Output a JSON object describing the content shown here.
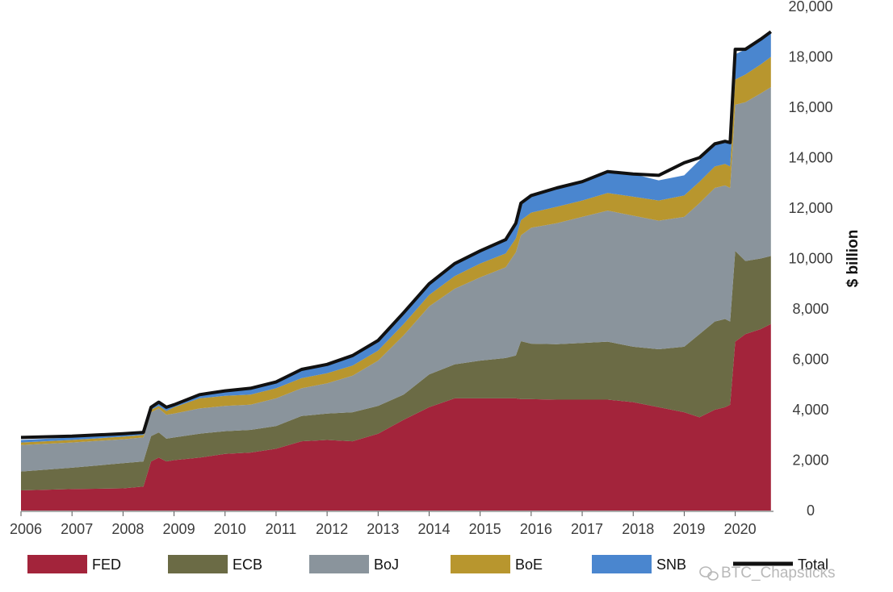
{
  "chart_data": {
    "type": "area",
    "stacked": true,
    "ylabel": "$ billion",
    "ylim": [
      0,
      20000
    ],
    "yticks": [
      0,
      2000,
      4000,
      6000,
      8000,
      10000,
      12000,
      14000,
      16000,
      18000,
      20000
    ],
    "ytick_labels": [
      "0",
      "2,000",
      "4,000",
      "6,000",
      "8,000",
      "10,000",
      "12,000",
      "14,000",
      "16,000",
      "18,000",
      "20,000"
    ],
    "y_axis_position": "right",
    "xlim": [
      2006.0,
      2020.75
    ],
    "xticks": [
      2006,
      2007,
      2008,
      2009,
      2010,
      2011,
      2012,
      2013,
      2014,
      2015,
      2016,
      2017,
      2018,
      2019,
      2020
    ],
    "xtick_labels": [
      "2006",
      "2007",
      "2008",
      "2009",
      "2010",
      "2011",
      "2012",
      "2013",
      "2014",
      "2015",
      "2016",
      "2017",
      "2018",
      "2019",
      "2020"
    ],
    "grid": false,
    "legend_position": "bottom",
    "x": [
      2006.0,
      2007.0,
      2008.0,
      2008.4,
      2008.55,
      2008.7,
      2008.85,
      2009.0,
      2009.5,
      2010.0,
      2010.5,
      2011.0,
      2011.5,
      2012.0,
      2012.5,
      2013.0,
      2013.5,
      2014.0,
      2014.5,
      2015.0,
      2015.5,
      2015.7,
      2015.8,
      2016.0,
      2016.5,
      2017.0,
      2017.5,
      2018.0,
      2018.5,
      2019.0,
      2019.3,
      2019.6,
      2019.8,
      2019.9,
      2020.0,
      2020.2,
      2020.5,
      2020.7
    ],
    "series": [
      {
        "name": "FED",
        "color": "#a3243b",
        "values": [
          800,
          850,
          880,
          950,
          1950,
          2100,
          1950,
          2000,
          2100,
          2250,
          2300,
          2450,
          2750,
          2800,
          2750,
          3050,
          3600,
          4100,
          4450,
          4450,
          4450,
          4450,
          4420,
          4420,
          4400,
          4400,
          4400,
          4300,
          4100,
          3900,
          3700,
          4000,
          4100,
          4200,
          6700,
          7000,
          7200,
          7400
        ]
      },
      {
        "name": "ECB",
        "color": "#6b6b45",
        "values": [
          750,
          850,
          1000,
          1000,
          1000,
          1000,
          900,
          900,
          950,
          900,
          900,
          900,
          1000,
          1050,
          1150,
          1100,
          1000,
          1300,
          1350,
          1500,
          1600,
          1700,
          2300,
          2200,
          2200,
          2250,
          2300,
          2200,
          2300,
          2600,
          3300,
          3500,
          3500,
          3300,
          3600,
          2900,
          2800,
          2700
        ]
      },
      {
        "name": "BoJ",
        "color": "#8a949c",
        "values": [
          1050,
          1000,
          950,
          950,
          950,
          950,
          950,
          950,
          1000,
          1000,
          1000,
          1100,
          1100,
          1200,
          1450,
          1800,
          2350,
          2700,
          3000,
          3300,
          3600,
          4100,
          4200,
          4600,
          4800,
          5000,
          5200,
          5200,
          5100,
          5150,
          5200,
          5300,
          5300,
          5300,
          5800,
          6300,
          6550,
          6700
        ]
      },
      {
        "name": "BoE",
        "color": "#b8962e",
        "values": [
          100,
          100,
          100,
          100,
          100,
          100,
          150,
          250,
          400,
          400,
          400,
          400,
          400,
          400,
          400,
          400,
          450,
          450,
          500,
          550,
          550,
          550,
          600,
          600,
          650,
          650,
          700,
          750,
          800,
          850,
          850,
          850,
          850,
          850,
          1000,
          1100,
          1150,
          1200
        ]
      },
      {
        "name": "SNB",
        "color": "#4a86cf",
        "values": [
          100,
          100,
          100,
          100,
          100,
          100,
          100,
          100,
          150,
          200,
          250,
          250,
          300,
          350,
          400,
          400,
          450,
          450,
          500,
          500,
          550,
          600,
          700,
          700,
          750,
          750,
          850,
          900,
          800,
          800,
          850,
          900,
          900,
          950,
          1000,
          1000,
          1000,
          1000
        ]
      },
      {
        "name": "Total",
        "color": "#111111",
        "type": "line",
        "values": [
          2900,
          2950,
          3050,
          3100,
          4100,
          4300,
          4100,
          4200,
          4600,
          4750,
          4850,
          5100,
          5600,
          5800,
          6150,
          6750,
          7850,
          9000,
          9800,
          10300,
          10750,
          11400,
          12200,
          12500,
          12800,
          13050,
          13450,
          13350,
          13300,
          13800,
          14000,
          14550,
          14650,
          14600,
          18300,
          18300,
          18700,
          19000
        ]
      }
    ]
  },
  "legend": [
    {
      "label": "FED",
      "color": "#a3243b",
      "kind": "box"
    },
    {
      "label": "ECB",
      "color": "#6b6b45",
      "kind": "box"
    },
    {
      "label": "BoJ",
      "color": "#8a949c",
      "kind": "box"
    },
    {
      "label": "BoE",
      "color": "#b8962e",
      "kind": "box"
    },
    {
      "label": "SNB",
      "color": "#4a86cf",
      "kind": "box"
    },
    {
      "label": "Total",
      "color": "#111111",
      "kind": "line"
    }
  ],
  "watermark": {
    "text": "BTC_Chapsticks",
    "icon": "wechat-icon"
  }
}
